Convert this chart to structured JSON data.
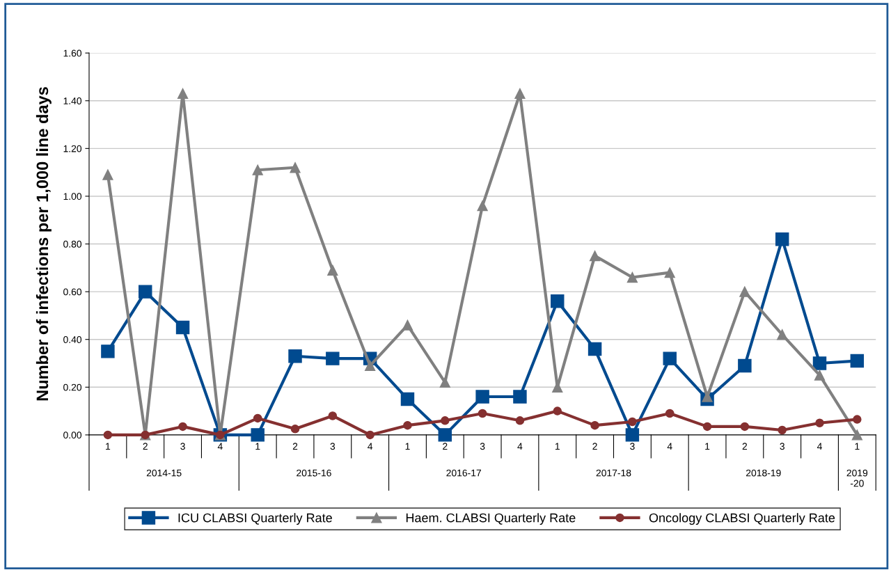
{
  "chart_data": {
    "type": "line",
    "ylabel": "Number of infections per 1,000 line days",
    "categories": [
      "1",
      "2",
      "3",
      "4",
      "1",
      "2",
      "3",
      "4",
      "1",
      "2",
      "3",
      "4",
      "1",
      "2",
      "3",
      "4",
      "1",
      "2",
      "3",
      "4",
      "1"
    ],
    "annotations": [
      "2014-15",
      "2015-16",
      "2016-17",
      "2017-18",
      "2018-19",
      "2019-20"
    ],
    "ylim": [
      0,
      1.6
    ],
    "yticks": [
      {
        "value": 0,
        "label": "0.00"
      },
      {
        "value": 0.2,
        "label": "0.20"
      },
      {
        "value": 0.4,
        "label": "0.40"
      },
      {
        "value": 0.6,
        "label": "0.60"
      },
      {
        "value": 0.8,
        "label": "0.80"
      },
      {
        "value": 1.0,
        "label": "1.00"
      },
      {
        "value": 1.2,
        "label": "1.20"
      },
      {
        "value": 1.4,
        "label": "1.40"
      },
      {
        "value": 1.6,
        "label": "1.60"
      }
    ],
    "grid": "y",
    "legend": "bottom",
    "line_style": "solid",
    "series": [
      {
        "name": "ICU CLABSI Quarterly Rate",
        "color": "#004a8f",
        "marker": "square",
        "values": [
          0.35,
          0.6,
          0.45,
          0.0,
          0.0,
          0.33,
          0.32,
          0.32,
          0.15,
          0.0,
          0.16,
          0.16,
          0.56,
          0.36,
          0.0,
          0.32,
          0.15,
          0.29,
          0.82,
          0.3,
          0.31
        ]
      },
      {
        "name": "Haem. CLABSI Quarterly Rate",
        "color": "#808080",
        "marker": "triangle",
        "values": [
          1.09,
          0.0,
          1.43,
          0.0,
          1.11,
          1.12,
          0.69,
          0.29,
          0.46,
          0.22,
          0.96,
          1.43,
          0.2,
          0.75,
          0.66,
          0.68,
          0.16,
          0.6,
          0.42,
          0.25,
          0.0
        ]
      },
      {
        "name": "Oncology CLABSI Quarterly Rate",
        "color": "#853030",
        "marker": "circle",
        "values": [
          0.0,
          0.0,
          0.035,
          0.0,
          0.07,
          0.025,
          0.08,
          0.0,
          0.04,
          0.06,
          0.09,
          0.06,
          0.1,
          0.04,
          0.055,
          0.09,
          0.035,
          0.035,
          0.02,
          0.05,
          0.065
        ]
      }
    ]
  }
}
